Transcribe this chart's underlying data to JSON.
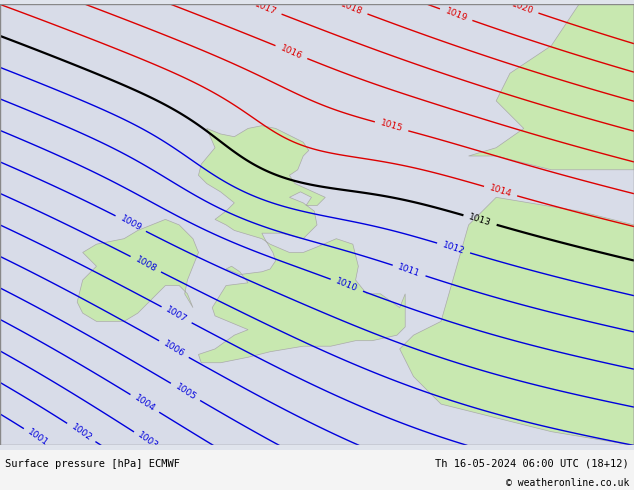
{
  "title_left": "Surface pressure [hPa] ECMWF",
  "title_right": "Th 16-05-2024 06:00 UTC (18+12)",
  "copyright": "© weatheronline.co.uk",
  "background_color": "#e0e4ec",
  "land_color": "#c8e8b0",
  "sea_color": "#d8dce8",
  "blue_isobar_color": "#0000dd",
  "red_isobar_color": "#dd0000",
  "black_isobar_color": "#000000",
  "border_color": "#aaaaaa",
  "figsize": [
    6.34,
    4.9
  ],
  "dpi": 100,
  "lon_min": -13.0,
  "lon_max": 10.0,
  "lat_min": 47.0,
  "lat_max": 63.0,
  "blue_levels": [
    1001,
    1002,
    1003,
    1004,
    1005,
    1006,
    1007,
    1008,
    1009,
    1010,
    1011,
    1012
  ],
  "black_levels": [
    1013
  ],
  "red_levels": [
    1014,
    1015,
    1016,
    1017,
    1018,
    1019,
    1020
  ]
}
